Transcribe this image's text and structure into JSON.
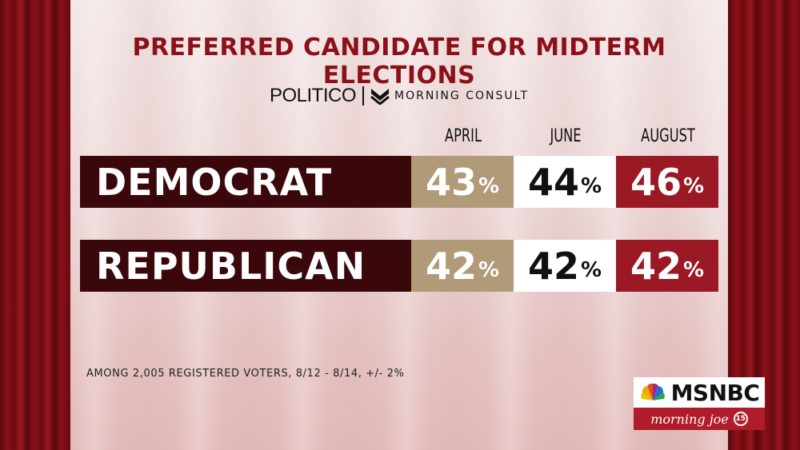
{
  "chart_data": {
    "type": "table",
    "title": "PREFERRED CANDIDATE FOR MIDTERM ELECTIONS",
    "columns": [
      "APRIL",
      "JUNE",
      "AUGUST"
    ],
    "rows": [
      {
        "label": "DEMOCRAT",
        "values": [
          43,
          44,
          46
        ],
        "display": [
          "43",
          "44",
          "46"
        ]
      },
      {
        "label": "REPUBLICAN",
        "values": [
          42,
          42,
          42
        ],
        "display": [
          "42",
          "42",
          "42"
        ]
      }
    ],
    "unit": "%",
    "source_politico": "POLITICO",
    "source_partner": "MORNING CONSULT",
    "footnote": "AMONG 2,005 REGISTERED VOTERS, 8/12 - 8/14, +/- 2%"
  },
  "network": {
    "name": "MSNBC",
    "show": "morning joe",
    "badge": "15"
  },
  "colors": {
    "title": "#8c1019",
    "label_box": "#3a070b",
    "april": "#b09a78",
    "june": "#ffffff",
    "august": "#9b1925"
  }
}
